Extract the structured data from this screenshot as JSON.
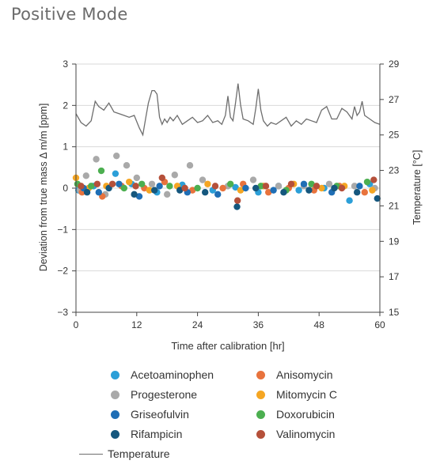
{
  "chart_data": {
    "type": "scatter",
    "title": "Positive Mode",
    "xlabel": "Time after calibration [hr]",
    "ylabel": "Deviation from true mass Δ m/m [ppm]",
    "y2label": "Temperature [°C]",
    "xlim": [
      0,
      60
    ],
    "ylim": [
      -3,
      3
    ],
    "y2lim": [
      15,
      29
    ],
    "xticks": [
      "0",
      "12",
      "24",
      "36",
      "48",
      "60"
    ],
    "yticks": [
      "3",
      "2",
      "1",
      "0",
      "−1",
      "−2",
      "−3"
    ],
    "y2ticks": [
      "29",
      "27",
      "25",
      "23",
      "21",
      "19",
      "17",
      "15"
    ],
    "grid": "horizontal",
    "legend_position": "bottom",
    "series": [
      {
        "name": "Acetoaminophen",
        "color": "#2b9fd8",
        "kind": "points",
        "x": [
          0.5,
          3.5,
          7.8,
          11.0,
          16.0,
          21.0,
          27.0,
          31.5,
          36.0,
          40.0,
          44.0,
          49.0,
          54.0,
          58.0
        ],
        "y": [
          -0.05,
          0.05,
          0.35,
          0.1,
          -0.1,
          0.08,
          -0.05,
          0.02,
          -0.1,
          0.05,
          -0.05,
          0.0,
          -0.3,
          0.1
        ]
      },
      {
        "name": "Progesterone",
        "color": "#a9a9a9",
        "kind": "points",
        "x": [
          0.8,
          2.0,
          4.0,
          5.8,
          8.0,
          10.0,
          12.0,
          15.0,
          18.0,
          19.5,
          22.5,
          25.0,
          30.0,
          35.0,
          40.0,
          45.0,
          50.0,
          55.0,
          59.0
        ],
        "y": [
          -0.05,
          0.3,
          0.7,
          -0.15,
          0.78,
          0.55,
          0.25,
          0.1,
          -0.15,
          0.32,
          0.55,
          0.2,
          0.05,
          0.2,
          0.05,
          0.05,
          0.1,
          0.05,
          0.0
        ]
      },
      {
        "name": "Anisomycin",
        "color": "#e8733d",
        "kind": "points",
        "x": [
          1.2,
          5.2,
          9.0,
          13.5,
          17.5,
          23.0,
          29.0,
          33.0,
          38.0,
          42.0,
          47.0,
          52.0,
          57.0
        ],
        "y": [
          -0.1,
          -0.2,
          0.05,
          0.0,
          0.15,
          -0.05,
          0.0,
          0.1,
          -0.1,
          0.0,
          -0.05,
          0.05,
          -0.1
        ]
      },
      {
        "name": "Mitomycin C",
        "color": "#f5a623",
        "kind": "points",
        "x": [
          0.0,
          2.5,
          6.0,
          10.5,
          14.5,
          20.0,
          26.0,
          32.5,
          37.0,
          43.0,
          48.5,
          53.0,
          58.5
        ],
        "y": [
          0.25,
          0.0,
          0.05,
          0.15,
          -0.05,
          0.05,
          0.1,
          -0.05,
          0.05,
          0.1,
          0.0,
          0.05,
          -0.05
        ]
      },
      {
        "name": "Griseofulvin",
        "color": "#1f6eb5",
        "kind": "points",
        "x": [
          1.5,
          4.5,
          8.5,
          12.5,
          16.5,
          22.0,
          28.0,
          33.5,
          39.0,
          45.0,
          50.5,
          56.0
        ],
        "y": [
          0.0,
          -0.1,
          0.1,
          -0.2,
          0.05,
          -0.1,
          -0.15,
          0.0,
          -0.05,
          0.1,
          -0.1,
          0.05
        ]
      },
      {
        "name": "Doxorubicin",
        "color": "#4caf50",
        "kind": "points",
        "x": [
          0.3,
          3.0,
          5.0,
          9.5,
          13.0,
          18.5,
          24.0,
          30.5,
          36.5,
          41.5,
          46.5,
          51.5,
          57.5
        ],
        "y": [
          0.1,
          0.05,
          0.42,
          0.0,
          0.1,
          0.05,
          0.0,
          0.1,
          0.05,
          -0.05,
          0.1,
          0.05,
          0.15
        ]
      },
      {
        "name": "Rifampicin",
        "color": "#15577e",
        "kind": "points",
        "x": [
          2.2,
          6.5,
          11.5,
          15.5,
          20.5,
          25.5,
          31.8,
          35.5,
          41.0,
          46.0,
          51.0,
          55.5,
          59.5
        ],
        "y": [
          -0.1,
          0.0,
          -0.15,
          -0.05,
          -0.05,
          -0.1,
          -0.45,
          0.0,
          -0.1,
          -0.05,
          0.0,
          -0.1,
          -0.25
        ]
      },
      {
        "name": "Valinomycin",
        "color": "#b5503a",
        "kind": "points",
        "x": [
          1.0,
          4.2,
          7.2,
          11.8,
          17.0,
          21.5,
          27.5,
          31.9,
          37.5,
          42.5,
          47.5,
          52.5,
          58.8
        ],
        "y": [
          0.05,
          0.1,
          0.1,
          0.05,
          0.25,
          0.0,
          0.05,
          -0.3,
          0.05,
          0.1,
          0.05,
          0.0,
          0.2
        ]
      },
      {
        "name": "Temperature",
        "color": "#6e6e6e",
        "kind": "line",
        "axis": "y2",
        "x": [
          0,
          1,
          2,
          3,
          3.8,
          4.5,
          5.5,
          6.5,
          7.5,
          8.5,
          9.5,
          10.5,
          11.5,
          12.5,
          13.2,
          13.8,
          14.3,
          15.0,
          15.5,
          16.0,
          16.5,
          17.0,
          17.5,
          18.0,
          18.6,
          19.2,
          20.0,
          21.0,
          22.0,
          23.0,
          24.0,
          25.0,
          26.0,
          27.0,
          28.0,
          28.8,
          29.5,
          30.0,
          30.5,
          31.0,
          31.5,
          32.0,
          32.5,
          33.0,
          34.0,
          35.0,
          35.5,
          36.0,
          36.5,
          37.0,
          37.8,
          38.5,
          39.5,
          40.5,
          41.5,
          42.5,
          43.5,
          44.5,
          45.5,
          46.5,
          47.5,
          48.5,
          49.5,
          50.5,
          51.5,
          52.5,
          53.5,
          54.5,
          55.0,
          55.5,
          56.0,
          56.5,
          57.0,
          58.0,
          59.0,
          60.0
        ],
        "y": [
          26.2,
          25.7,
          25.5,
          25.8,
          26.9,
          26.6,
          26.4,
          26.8,
          26.3,
          26.2,
          26.1,
          26.0,
          26.1,
          25.4,
          25.0,
          26.0,
          26.8,
          27.5,
          27.5,
          27.3,
          26.0,
          25.6,
          25.9,
          25.7,
          26.0,
          25.8,
          26.1,
          25.6,
          25.8,
          26.0,
          25.7,
          25.8,
          26.1,
          25.7,
          25.8,
          25.6,
          26.1,
          27.2,
          26.0,
          25.8,
          26.8,
          27.9,
          26.7,
          25.9,
          25.8,
          25.6,
          26.5,
          27.6,
          26.4,
          25.8,
          25.5,
          25.7,
          25.6,
          25.8,
          26.0,
          25.5,
          25.8,
          25.6,
          25.9,
          25.8,
          25.7,
          26.4,
          26.6,
          25.9,
          25.9,
          26.5,
          26.3,
          25.9,
          26.6,
          26.1,
          26.3,
          26.9,
          26.1,
          25.9,
          25.7,
          25.6
        ]
      }
    ]
  }
}
